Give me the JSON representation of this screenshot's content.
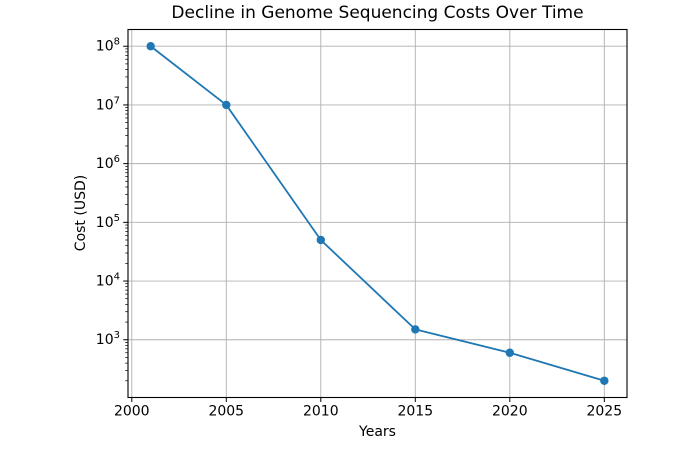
{
  "chart_data": {
    "type": "line",
    "title": "Decline in Genome Sequencing Costs Over Time",
    "xlabel": "Years",
    "ylabel": "Cost (USD)",
    "x": [
      2001,
      2005,
      2010,
      2015,
      2020,
      2025
    ],
    "y": [
      100000000,
      10000000,
      50000,
      1500,
      600,
      200
    ],
    "yscale": "log",
    "grid": true,
    "legend": false,
    "xticks": [
      2000,
      2005,
      2010,
      2015,
      2020,
      2025
    ],
    "ytick_exponents": [
      3,
      4,
      5,
      6,
      7,
      8
    ],
    "xlim": [
      1999.8,
      2026.2
    ],
    "ylim_log": [
      2.016,
      8.285
    ],
    "marker": "circle",
    "colors": {
      "line": "#1f77b4",
      "marker": "#1f77b4",
      "grid": "#b0b0b0",
      "axes": "#000000",
      "background": "#ffffff"
    }
  }
}
